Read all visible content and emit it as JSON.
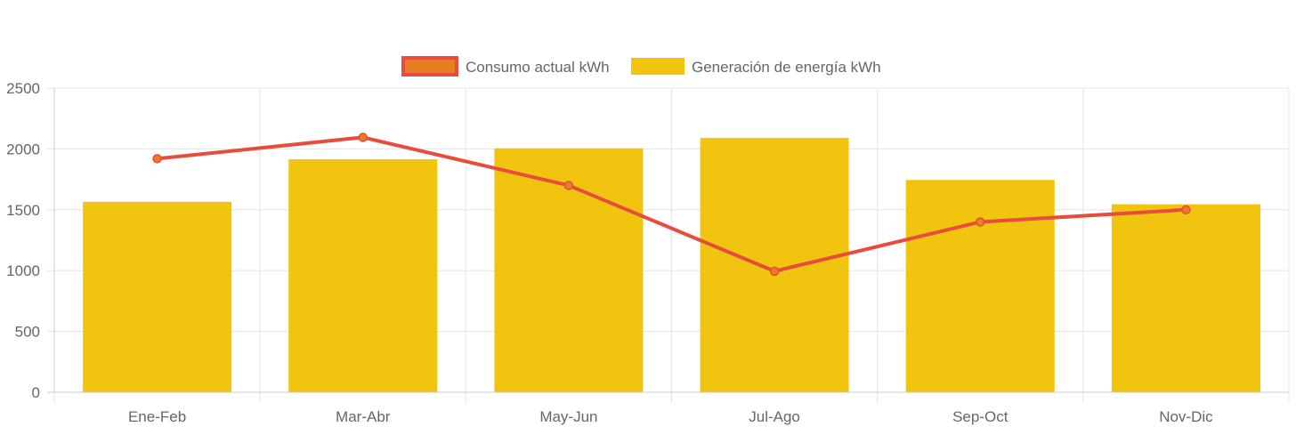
{
  "chart_data": {
    "type": "bar",
    "categories": [
      "Ene-Feb",
      "Mar-Abr",
      "May-Jun",
      "Jul-Ago",
      "Sep-Oct",
      "Nov-Dic"
    ],
    "series": [
      {
        "name": "Consumo actual kWh",
        "type": "line",
        "values": [
          1920,
          2095,
          1700,
          995,
          1400,
          1500
        ],
        "color": "#e74c3c",
        "point_fill": "#e67e22"
      },
      {
        "name": "Generación de energía kWh",
        "type": "bar",
        "values": [
          1565,
          1915,
          2005,
          2090,
          1745,
          1545
        ],
        "color": "#f1c40f"
      }
    ],
    "ylim": [
      0,
      2500
    ],
    "yticks": [
      0,
      500,
      1000,
      1500,
      2000,
      2500
    ],
    "grid": true,
    "legend_position": "top",
    "title": "",
    "xlabel": "",
    "ylabel": ""
  }
}
